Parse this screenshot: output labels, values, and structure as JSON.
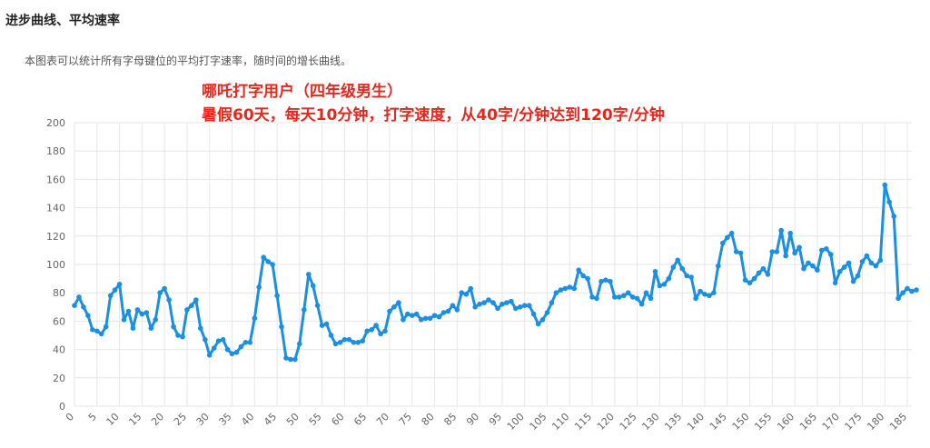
{
  "section": {
    "title": "进步曲线、平均速率",
    "description": "本图表可以统计所有字母键位的平均打字速率，随时间的增长曲线。"
  },
  "colors": {
    "series": "#1a8fe3",
    "annotation": "#e8271c",
    "grid": "#e6e6e6"
  },
  "chart_data": {
    "type": "line",
    "annotation_lines": [
      "哪吒打字用户（四年级男生）",
      "暑假60天，每天10分钟，打字速度，从40字/分钟达到120字/分钟"
    ],
    "title": "",
    "xlabel": "",
    "ylabel": "",
    "ylim": [
      0,
      200
    ],
    "yticks": [
      0,
      20,
      40,
      60,
      80,
      100,
      120,
      140,
      160,
      180,
      200
    ],
    "xlim": [
      0,
      186
    ],
    "xticks": [
      0,
      5,
      10,
      15,
      20,
      25,
      30,
      35,
      40,
      45,
      50,
      55,
      60,
      65,
      70,
      75,
      80,
      85,
      90,
      95,
      100,
      105,
      110,
      115,
      120,
      125,
      130,
      135,
      140,
      145,
      150,
      155,
      160,
      165,
      170,
      175,
      180,
      185
    ],
    "grid": true,
    "legend": "none",
    "series": [
      {
        "values": [
          71,
          77,
          70,
          64,
          54,
          53,
          51,
          56,
          78,
          82,
          86,
          61,
          67,
          55,
          68,
          65,
          66,
          55,
          61,
          80,
          83,
          75,
          56,
          50,
          49,
          68,
          71,
          75,
          55,
          47,
          36,
          41,
          46,
          47,
          40,
          37,
          38,
          42,
          45,
          45,
          62,
          84,
          105,
          102,
          100,
          78,
          56,
          34,
          33,
          33,
          44,
          68,
          93,
          85,
          71,
          57,
          58,
          50,
          44,
          45,
          47,
          47,
          45,
          45,
          46,
          53,
          54,
          57,
          51,
          53,
          67,
          70,
          73,
          61,
          65,
          64,
          65,
          61,
          62,
          62,
          64,
          63,
          66,
          67,
          71,
          68,
          80,
          79,
          83,
          70,
          72,
          73,
          75,
          73,
          69,
          72,
          73,
          74,
          69,
          70,
          71,
          71,
          65,
          58,
          61,
          66,
          73,
          80,
          82,
          83,
          84,
          83,
          96,
          92,
          90,
          77,
          76,
          88,
          89,
          88,
          77,
          77,
          78,
          80,
          77,
          76,
          72,
          80,
          76,
          95,
          85,
          86,
          90,
          98,
          103,
          97,
          92,
          91,
          76,
          81,
          79,
          78,
          80,
          99,
          115,
          119,
          122,
          109,
          108,
          89,
          87,
          90,
          94,
          97,
          93,
          109,
          109,
          124,
          106,
          122,
          108,
          112,
          97,
          101,
          99,
          96,
          110,
          111,
          107,
          87,
          95,
          98,
          101,
          88,
          92,
          102,
          106,
          101,
          99,
          103,
          156,
          144,
          134,
          76,
          80,
          83,
          81,
          82
        ]
      }
    ]
  }
}
